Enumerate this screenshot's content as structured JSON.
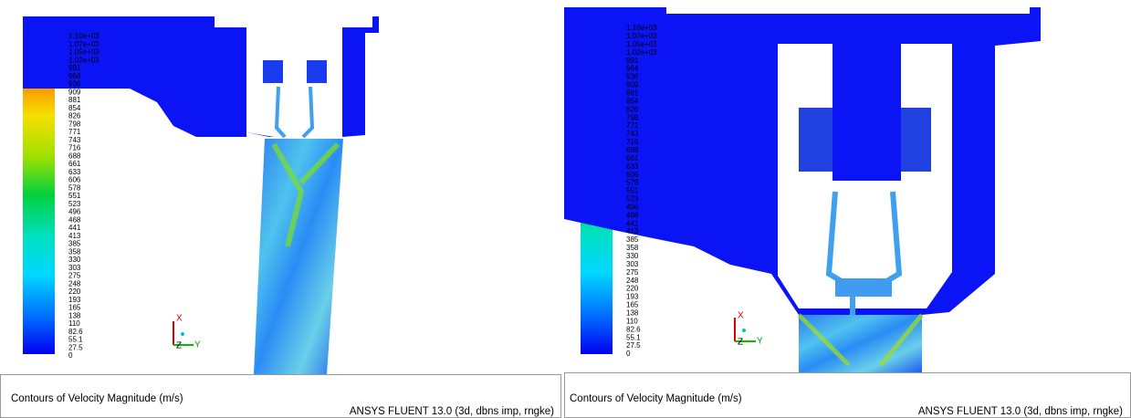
{
  "panels": [
    {
      "legend_labels": [
        "1.10e+03",
        "1.07e+03",
        "1.05e+03",
        "1.02e+03",
        "991",
        "964",
        "936",
        "909",
        "881",
        "854",
        "826",
        "798",
        "771",
        "743",
        "716",
        "688",
        "661",
        "633",
        "606",
        "578",
        "551",
        "523",
        "496",
        "468",
        "441",
        "413",
        "385",
        "358",
        "330",
        "303",
        "275",
        "248",
        "220",
        "193",
        "165",
        "138",
        "110",
        "82.6",
        "55.1",
        "27.5",
        "0"
      ],
      "axes": {
        "x": "X",
        "y": "Y",
        "z": "Z"
      },
      "caption": "Contours of Velocity Magnitude (m/s)",
      "footer": "ANSYS FLUENT 13.0 (3d, dbns imp, rngke)"
    },
    {
      "legend_labels": [
        "1.10e+03",
        "1.07e+03",
        "1.05e+03",
        "1.02e+03",
        "991",
        "964",
        "936",
        "909",
        "881",
        "854",
        "826",
        "798",
        "771",
        "743",
        "716",
        "688",
        "661",
        "633",
        "606",
        "578",
        "551",
        "523",
        "496",
        "468",
        "441",
        "413",
        "385",
        "358",
        "330",
        "303",
        "275",
        "248",
        "220",
        "193",
        "165",
        "138",
        "110",
        "82.6",
        "55.1",
        "27.5",
        "0"
      ],
      "axes": {
        "x": "X",
        "y": "Y",
        "z": "Z"
      },
      "caption": "Contours of Velocity Magnitude (m/s)",
      "footer": "ANSYS FLUENT 13.0 (3d, dbns imp, rngke)"
    }
  ]
}
